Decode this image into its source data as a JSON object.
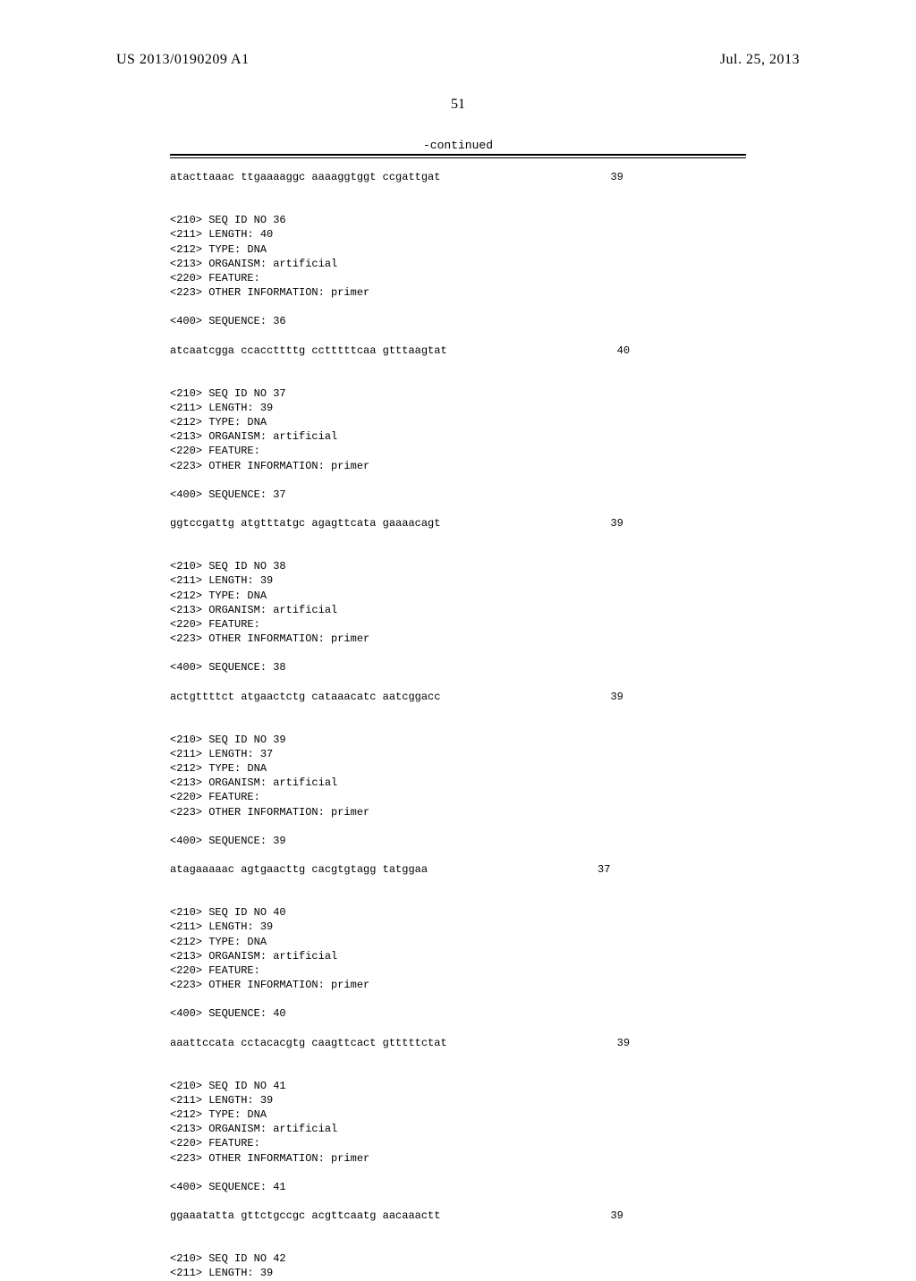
{
  "header": {
    "pub_number": "US 2013/0190209 A1",
    "pub_date": "Jul. 25, 2013",
    "page_number": "51",
    "continued_label": "-continued"
  },
  "first_seq": {
    "sequence": "atacttaaac ttgaaaaggc aaaaggtggt ccgattgat",
    "length_display": "39"
  },
  "entries": [
    {
      "id_line": "<210> SEQ ID NO 36",
      "length_line": "<211> LENGTH: 40",
      "type_line": "<212> TYPE: DNA",
      "organism_line": "<213> ORGANISM: artificial",
      "feature_line": "<220> FEATURE:",
      "other_info_line": "<223> OTHER INFORMATION: primer",
      "seq_header": "<400> SEQUENCE: 36",
      "sequence": "atcaatcgga ccaccttttg cctttttcaa gtttaagtat",
      "length_display": "40"
    },
    {
      "id_line": "<210> SEQ ID NO 37",
      "length_line": "<211> LENGTH: 39",
      "type_line": "<212> TYPE: DNA",
      "organism_line": "<213> ORGANISM: artificial",
      "feature_line": "<220> FEATURE:",
      "other_info_line": "<223> OTHER INFORMATION: primer",
      "seq_header": "<400> SEQUENCE: 37",
      "sequence": "ggtccgattg atgtttatgc agagttcata gaaaacagt",
      "length_display": "39"
    },
    {
      "id_line": "<210> SEQ ID NO 38",
      "length_line": "<211> LENGTH: 39",
      "type_line": "<212> TYPE: DNA",
      "organism_line": "<213> ORGANISM: artificial",
      "feature_line": "<220> FEATURE:",
      "other_info_line": "<223> OTHER INFORMATION: primer",
      "seq_header": "<400> SEQUENCE: 38",
      "sequence": "actgttttct atgaactctg cataaacatc aatcggacc",
      "length_display": "39"
    },
    {
      "id_line": "<210> SEQ ID NO 39",
      "length_line": "<211> LENGTH: 37",
      "type_line": "<212> TYPE: DNA",
      "organism_line": "<213> ORGANISM: artificial",
      "feature_line": "<220> FEATURE:",
      "other_info_line": "<223> OTHER INFORMATION: primer",
      "seq_header": "<400> SEQUENCE: 39",
      "sequence": "atagaaaaac agtgaacttg cacgtgtagg tatggaa",
      "length_display": "37"
    },
    {
      "id_line": "<210> SEQ ID NO 40",
      "length_line": "<211> LENGTH: 39",
      "type_line": "<212> TYPE: DNA",
      "organism_line": "<213> ORGANISM: artificial",
      "feature_line": "<220> FEATURE:",
      "other_info_line": "<223> OTHER INFORMATION: primer",
      "seq_header": "<400> SEQUENCE: 40",
      "sequence": "aaattccata cctacacgtg caagttcact gtttttctat",
      "length_display": "39"
    },
    {
      "id_line": "<210> SEQ ID NO 41",
      "length_line": "<211> LENGTH: 39",
      "type_line": "<212> TYPE: DNA",
      "organism_line": "<213> ORGANISM: artificial",
      "feature_line": "<220> FEATURE:",
      "other_info_line": "<223> OTHER INFORMATION: primer",
      "seq_header": "<400> SEQUENCE: 41",
      "sequence": "ggaaatatta gttctgccgc acgttcaatg aacaaactt",
      "length_display": "39"
    }
  ],
  "trailing": {
    "id_line": "<210> SEQ ID NO 42",
    "length_line": "<211> LENGTH: 39"
  }
}
